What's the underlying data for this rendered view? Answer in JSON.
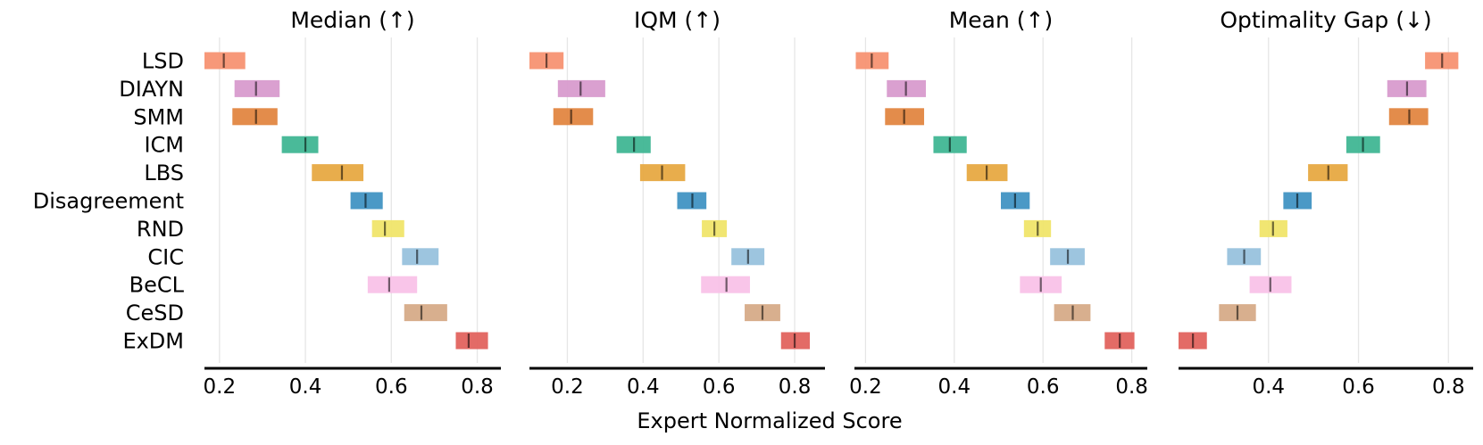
{
  "chart_data": {
    "type": "interval",
    "xlabel": "Expert Normalized Score",
    "algorithms": [
      "LSD",
      "DIAYN",
      "SMM",
      "ICM",
      "LBS",
      "Disagreement",
      "RND",
      "CIC",
      "BeCL",
      "CeSD",
      "ExDM"
    ],
    "colors": {
      "LSD": "#F79272",
      "DIAYN": "#D89BCD",
      "SMM": "#E28641",
      "ICM": "#40B693",
      "LBS": "#E7A942",
      "Disagreement": "#4193C3",
      "RND": "#F0E56A",
      "CIC": "#98C2DD",
      "BeCL": "#F9C2E8",
      "CeSD": "#D6AB88",
      "ExDM": "#E1635E"
    },
    "grid": true,
    "panels": [
      {
        "title": "Median (↑)",
        "xlim": [
          0.165,
          0.855
        ],
        "ticks": [
          0.2,
          0.4,
          0.6,
          0.8
        ],
        "tick_labels": [
          "0.2",
          "0.4",
          "0.6",
          "0.8"
        ],
        "intervals": {
          "LSD": {
            "low": 0.165,
            "high": 0.26,
            "point": 0.21
          },
          "DIAYN": {
            "low": 0.235,
            "high": 0.34,
            "point": 0.285
          },
          "SMM": {
            "low": 0.23,
            "high": 0.335,
            "point": 0.285
          },
          "ICM": {
            "low": 0.345,
            "high": 0.43,
            "point": 0.4
          },
          "LBS": {
            "low": 0.415,
            "high": 0.535,
            "point": 0.485
          },
          "Disagreement": {
            "low": 0.505,
            "high": 0.58,
            "point": 0.54
          },
          "RND": {
            "low": 0.555,
            "high": 0.63,
            "point": 0.585
          },
          "CIC": {
            "low": 0.625,
            "high": 0.71,
            "point": 0.66
          },
          "BeCL": {
            "low": 0.545,
            "high": 0.66,
            "point": 0.595
          },
          "CeSD": {
            "low": 0.63,
            "high": 0.73,
            "point": 0.67
          },
          "ExDM": {
            "low": 0.75,
            "high": 0.825,
            "point": 0.78
          }
        }
      },
      {
        "title": "IQM (↑)",
        "xlim": [
          0.1,
          0.88
        ],
        "ticks": [
          0.2,
          0.4,
          0.6,
          0.8
        ],
        "tick_labels": [
          "0.2",
          "0.4",
          "0.6",
          "0.8"
        ],
        "intervals": {
          "LSD": {
            "low": 0.1,
            "high": 0.19,
            "point": 0.145
          },
          "DIAYN": {
            "low": 0.175,
            "high": 0.3,
            "point": 0.235
          },
          "SMM": {
            "low": 0.163,
            "high": 0.268,
            "point": 0.21
          },
          "ICM": {
            "low": 0.33,
            "high": 0.42,
            "point": 0.376
          },
          "LBS": {
            "low": 0.392,
            "high": 0.511,
            "point": 0.45
          },
          "Disagreement": {
            "low": 0.49,
            "high": 0.567,
            "point": 0.53
          },
          "RND": {
            "low": 0.555,
            "high": 0.621,
            "point": 0.588
          },
          "CIC": {
            "low": 0.633,
            "high": 0.72,
            "point": 0.677
          },
          "BeCL": {
            "low": 0.553,
            "high": 0.682,
            "point": 0.62
          },
          "CeSD": {
            "low": 0.668,
            "high": 0.762,
            "point": 0.715
          },
          "ExDM": {
            "low": 0.764,
            "high": 0.84,
            "point": 0.8
          }
        }
      },
      {
        "title": "Mean (↑)",
        "xlim": [
          0.175,
          0.835
        ],
        "ticks": [
          0.2,
          0.4,
          0.6,
          0.8
        ],
        "tick_labels": [
          "0.2",
          "0.4",
          "0.6",
          "0.8"
        ],
        "intervals": {
          "LSD": {
            "low": 0.178,
            "high": 0.252,
            "point": 0.214
          },
          "DIAYN": {
            "low": 0.248,
            "high": 0.336,
            "point": 0.291
          },
          "SMM": {
            "low": 0.244,
            "high": 0.332,
            "point": 0.287
          },
          "ICM": {
            "low": 0.353,
            "high": 0.428,
            "point": 0.39
          },
          "LBS": {
            "low": 0.428,
            "high": 0.52,
            "point": 0.473
          },
          "Disagreement": {
            "low": 0.505,
            "high": 0.57,
            "point": 0.537
          },
          "RND": {
            "low": 0.557,
            "high": 0.618,
            "point": 0.588
          },
          "CIC": {
            "low": 0.616,
            "high": 0.694,
            "point": 0.656
          },
          "BeCL": {
            "low": 0.548,
            "high": 0.642,
            "point": 0.595
          },
          "CeSD": {
            "low": 0.625,
            "high": 0.707,
            "point": 0.667
          },
          "ExDM": {
            "low": 0.739,
            "high": 0.806,
            "point": 0.773
          }
        }
      },
      {
        "title": "Optimality Gap (↓)",
        "xlim": [
          0.2,
          0.855
        ],
        "ticks": [
          0.4,
          0.6,
          0.8
        ],
        "tick_labels": [
          "0.4",
          "0.6",
          "0.8"
        ],
        "intervals": {
          "LSD": {
            "low": 0.748,
            "high": 0.822,
            "point": 0.786
          },
          "DIAYN": {
            "low": 0.664,
            "high": 0.751,
            "point": 0.708
          },
          "SMM": {
            "low": 0.668,
            "high": 0.755,
            "point": 0.713
          },
          "ICM": {
            "low": 0.573,
            "high": 0.648,
            "point": 0.61
          },
          "LBS": {
            "low": 0.488,
            "high": 0.576,
            "point": 0.533
          },
          "Disagreement": {
            "low": 0.433,
            "high": 0.496,
            "point": 0.464
          },
          "RND": {
            "low": 0.38,
            "high": 0.442,
            "point": 0.41
          },
          "CIC": {
            "low": 0.308,
            "high": 0.383,
            "point": 0.346
          },
          "BeCL": {
            "low": 0.358,
            "high": 0.451,
            "point": 0.404
          },
          "CeSD": {
            "low": 0.29,
            "high": 0.372,
            "point": 0.331
          },
          "ExDM": {
            "low": 0.2,
            "high": 0.263,
            "point": 0.232
          }
        }
      }
    ]
  }
}
